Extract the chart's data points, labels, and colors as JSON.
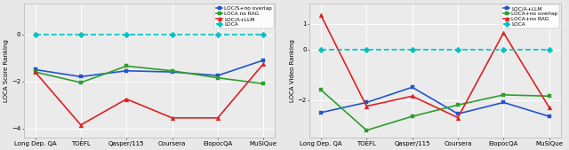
{
  "categories": [
    "Long Dep. QA",
    "TOEFL",
    "Qasper/115",
    "Coursera",
    "ElopocQA",
    "MuSiQue"
  ],
  "left": {
    "ylabel": "LOCA Score Ranking",
    "lines": [
      {
        "label": "LOC/S+no overlap",
        "color": "#2255cc",
        "marker": "s",
        "values": [
          -1.5,
          -1.8,
          -1.55,
          -1.6,
          -1.75,
          -1.1
        ],
        "linestyle": "-"
      },
      {
        "label": "LOCA no RAG",
        "color": "#2ca02c",
        "marker": "s",
        "values": [
          -1.6,
          -2.05,
          -1.35,
          -1.55,
          -1.85,
          -2.1
        ],
        "linestyle": "-"
      },
      {
        "label": "LOC/A+LLM",
        "color": "#dd2222",
        "marker": "^",
        "values": [
          -1.6,
          -3.85,
          -2.75,
          -3.55,
          -3.55,
          -1.25
        ],
        "linestyle": "-"
      },
      {
        "label": "LOCA",
        "color": "#00c0c0",
        "marker": "D",
        "values": [
          0.0,
          0.0,
          0.0,
          0.0,
          0.0,
          0.0
        ],
        "linestyle": "--"
      }
    ],
    "ylim": [
      -4.4,
      1.3
    ],
    "yticks": [
      -4,
      -2,
      0
    ]
  },
  "right": {
    "ylabel": "LOCA Video Ranking",
    "lines": [
      {
        "label": "LOC/A+LLM",
        "color": "#2255cc",
        "marker": "s",
        "values": [
          -2.5,
          -2.1,
          -1.5,
          -2.55,
          -2.1,
          -2.65
        ],
        "linestyle": "-"
      },
      {
        "label": "LOCA+no overlap",
        "color": "#2ca02c",
        "marker": "s",
        "values": [
          -1.6,
          -3.2,
          -2.65,
          -2.2,
          -1.8,
          -1.85
        ],
        "linestyle": "-"
      },
      {
        "label": "LOCA+no RAG",
        "color": "#dd2222",
        "marker": "^",
        "values": [
          1.35,
          -2.25,
          -1.85,
          -2.7,
          0.65,
          -2.3
        ],
        "linestyle": "-"
      },
      {
        "label": "LOCA",
        "color": "#00c0c0",
        "marker": "D",
        "values": [
          0.0,
          0.0,
          0.0,
          0.0,
          0.0,
          0.0
        ],
        "linestyle": "--"
      }
    ],
    "ylim": [
      -3.5,
      1.8
    ],
    "yticks": [
      -2,
      0,
      1
    ]
  },
  "background_color": "#e8e8e8",
  "plot_bg": "#ebebeb",
  "markersize": 3.5,
  "linewidth": 1.2,
  "fontsize_tick": 5.0,
  "fontsize_label": 5.0,
  "fontsize_legend": 4.2
}
